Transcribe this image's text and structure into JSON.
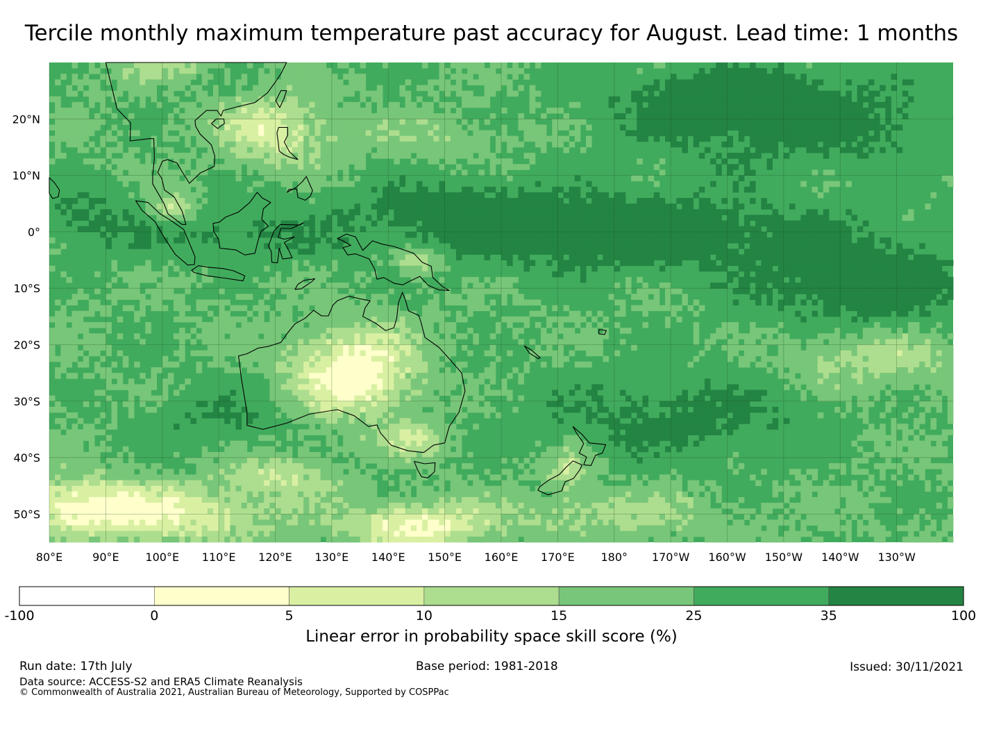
{
  "title": "Tercile monthly maximum temperature past accuracy for August. Lead time: 1 months",
  "map": {
    "lon_range": [
      80,
      240
    ],
    "lat_range": [
      -55,
      30
    ],
    "longitude_ticks": [
      {
        "value": 80,
        "label": "80°E"
      },
      {
        "value": 90,
        "label": "90°E"
      },
      {
        "value": 100,
        "label": "100°E"
      },
      {
        "value": 110,
        "label": "110°E"
      },
      {
        "value": 120,
        "label": "120°E"
      },
      {
        "value": 130,
        "label": "130°E"
      },
      {
        "value": 140,
        "label": "140°E"
      },
      {
        "value": 150,
        "label": "150°E"
      },
      {
        "value": 160,
        "label": "160°E"
      },
      {
        "value": 170,
        "label": "170°E"
      },
      {
        "value": 180,
        "label": "180°"
      },
      {
        "value": 190,
        "label": "170°W"
      },
      {
        "value": 200,
        "label": "160°W"
      },
      {
        "value": 210,
        "label": "150°W"
      },
      {
        "value": 220,
        "label": "140°W"
      },
      {
        "value": 230,
        "label": "130°W"
      }
    ],
    "latitude_ticks": [
      {
        "value": 20,
        "label": "20°N"
      },
      {
        "value": 10,
        "label": "10°N"
      },
      {
        "value": 0,
        "label": "0°"
      },
      {
        "value": -10,
        "label": "10°S"
      },
      {
        "value": -20,
        "label": "20°S"
      },
      {
        "value": -30,
        "label": "30°S"
      },
      {
        "value": -40,
        "label": "40°S"
      },
      {
        "value": -50,
        "label": "50°S"
      }
    ],
    "gridlines": true
  },
  "colorbar": {
    "title": "Linear error in probability space skill score (%)",
    "bounds": [
      "-100",
      "0",
      "5",
      "10",
      "15",
      "25",
      "35",
      "100"
    ],
    "colors": [
      "#ffffff",
      "#ffffcc",
      "#d9f0a3",
      "#addd8e",
      "#78c679",
      "#41ab5d",
      "#238443"
    ]
  },
  "footer": {
    "run_date": "Run date: 17th July",
    "base_period": "Base period: 1981-2018",
    "issued": "Issued: 30/11/2021",
    "data_source": "Data source: ACCESS-S2 and ERA5 Climate Reanalysis",
    "copyright": "© Commonwealth of Australia 2021, Australian Bureau of Meteorology, Supported by COSPPac"
  }
}
